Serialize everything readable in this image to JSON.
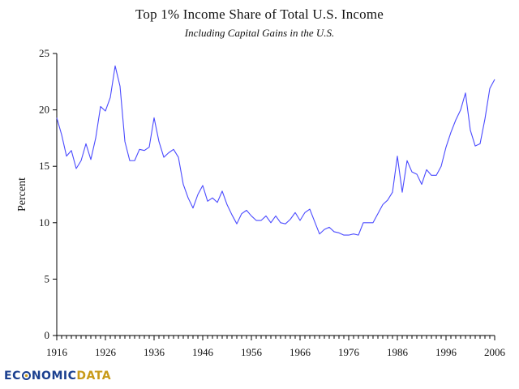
{
  "chart_data": {
    "type": "line",
    "title": "Top 1% Income Share of Total U.S. Income",
    "subtitle": "Including Capital Gains in the U.S.",
    "xlabel": "",
    "ylabel": "Percent",
    "xlim": [
      1916,
      2006
    ],
    "ylim": [
      0,
      25
    ],
    "xticks": [
      1916,
      1926,
      1936,
      1946,
      1956,
      1966,
      1976,
      1986,
      1996,
      2006
    ],
    "yticks": [
      0,
      5,
      10,
      15,
      20,
      25
    ],
    "grid": false,
    "legend": "none",
    "line_color": "#4a4aff",
    "x": [
      1916,
      1917,
      1918,
      1919,
      1920,
      1921,
      1922,
      1923,
      1924,
      1925,
      1926,
      1927,
      1928,
      1929,
      1930,
      1931,
      1932,
      1933,
      1934,
      1935,
      1936,
      1937,
      1938,
      1939,
      1940,
      1941,
      1942,
      1943,
      1944,
      1945,
      1946,
      1947,
      1948,
      1949,
      1950,
      1951,
      1952,
      1953,
      1954,
      1955,
      1956,
      1957,
      1958,
      1959,
      1960,
      1961,
      1962,
      1963,
      1964,
      1965,
      1966,
      1967,
      1968,
      1969,
      1970,
      1971,
      1972,
      1973,
      1974,
      1975,
      1976,
      1977,
      1978,
      1979,
      1980,
      1981,
      1982,
      1983,
      1984,
      1985,
      1986,
      1987,
      1988,
      1989,
      1990,
      1991,
      1992,
      1993,
      1994,
      1995,
      1996,
      1997,
      1998,
      1999,
      2000,
      2001,
      2002,
      2003,
      2004,
      2005,
      2006
    ],
    "values": [
      19.3,
      17.8,
      15.9,
      16.4,
      14.8,
      15.5,
      17.0,
      15.6,
      17.5,
      20.3,
      19.9,
      21.1,
      23.9,
      22.1,
      17.2,
      15.5,
      15.5,
      16.5,
      16.4,
      16.7,
      19.3,
      17.2,
      15.8,
      16.2,
      16.5,
      15.8,
      13.4,
      12.2,
      11.3,
      12.5,
      13.3,
      11.9,
      12.2,
      11.8,
      12.8,
      11.6,
      10.7,
      9.9,
      10.8,
      11.1,
      10.6,
      10.2,
      10.2,
      10.6,
      10.0,
      10.6,
      10.0,
      9.9,
      10.3,
      10.9,
      10.2,
      10.9,
      11.2,
      10.1,
      9.0,
      9.4,
      9.6,
      9.2,
      9.1,
      8.9,
      8.9,
      9.0,
      8.9,
      10.0,
      10.0,
      10.0,
      10.8,
      11.6,
      12.0,
      12.7,
      15.9,
      12.7,
      15.5,
      14.5,
      14.3,
      13.4,
      14.7,
      14.2,
      14.2,
      15.0,
      16.7,
      18.0,
      19.1,
      20.0,
      21.5,
      18.2,
      16.8,
      17.0,
      19.2,
      21.9,
      22.7
    ]
  },
  "watermark": {
    "left": "EC",
    "middle": "NOMIC",
    "right": "DATA"
  }
}
